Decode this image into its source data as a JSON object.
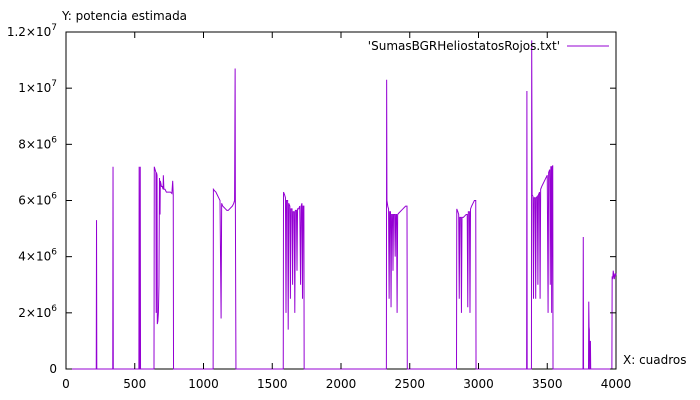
{
  "chart_data": {
    "type": "line",
    "ylabel": "Y: potencia estimada",
    "xlabel": "X: cuadros",
    "xlim": [
      0,
      4000
    ],
    "ylim": [
      0,
      12000000
    ],
    "x_ticks": [
      0,
      500,
      1000,
      1500,
      2000,
      2500,
      3000,
      3500,
      4000
    ],
    "x_tick_labels": [
      "0",
      "500",
      "1000",
      "1500",
      "2000",
      "2500",
      "3000",
      "3500",
      "4000"
    ],
    "y_ticks": [
      0,
      2000000,
      4000000,
      6000000,
      8000000,
      10000000,
      12000000
    ],
    "y_tick_labels": [
      {
        "mantissa": "0",
        "exp": ""
      },
      {
        "mantissa": "2×10",
        "exp": "6"
      },
      {
        "mantissa": "4×10",
        "exp": "6"
      },
      {
        "mantissa": "6×10",
        "exp": "6"
      },
      {
        "mantissa": "8×10",
        "exp": "6"
      },
      {
        "mantissa": "1×10",
        "exp": "7"
      },
      {
        "mantissa": "1.2×10",
        "exp": "7"
      }
    ],
    "grid": false,
    "legend_position": "top-right",
    "series": [
      {
        "name": "'SumasBGRHeliostatosRojos.txt'",
        "color": "#9400d3",
        "points": [
          [
            0,
            0
          ],
          [
            220,
            0
          ],
          [
            222,
            5300000
          ],
          [
            224,
            0
          ],
          [
            340,
            0
          ],
          [
            342,
            7200000
          ],
          [
            344,
            0
          ],
          [
            530,
            0
          ],
          [
            532,
            7200000
          ],
          [
            534,
            0
          ],
          [
            538,
            0
          ],
          [
            540,
            7200000
          ],
          [
            542,
            0
          ],
          [
            640,
            0
          ],
          [
            642,
            7200000
          ],
          [
            648,
            7100000
          ],
          [
            654,
            7000000
          ],
          [
            656,
            2000000
          ],
          [
            658,
            7000000
          ],
          [
            662,
            6900000
          ],
          [
            664,
            1600000
          ],
          [
            668,
            1700000
          ],
          [
            672,
            2000000
          ],
          [
            676,
            3000000
          ],
          [
            680,
            6800000
          ],
          [
            684,
            5500000
          ],
          [
            686,
            6700000
          ],
          [
            690,
            6600000
          ],
          [
            694,
            6500000
          ],
          [
            700,
            6500000
          ],
          [
            706,
            6400000
          ],
          [
            708,
            6900000
          ],
          [
            712,
            6400000
          ],
          [
            720,
            6400000
          ],
          [
            730,
            6300000
          ],
          [
            740,
            6300000
          ],
          [
            750,
            6300000
          ],
          [
            760,
            6300000
          ],
          [
            770,
            6250000
          ],
          [
            776,
            6700000
          ],
          [
            780,
            6200000
          ],
          [
            782,
            0
          ],
          [
            1070,
            0
          ],
          [
            1072,
            6400000
          ],
          [
            1080,
            6350000
          ],
          [
            1090,
            6300000
          ],
          [
            1100,
            6200000
          ],
          [
            1110,
            6100000
          ],
          [
            1120,
            6000000
          ],
          [
            1128,
            1800000
          ],
          [
            1132,
            5900000
          ],
          [
            1140,
            5800000
          ],
          [
            1150,
            5750000
          ],
          [
            1160,
            5700000
          ],
          [
            1170,
            5650000
          ],
          [
            1180,
            5650000
          ],
          [
            1190,
            5700000
          ],
          [
            1200,
            5750000
          ],
          [
            1210,
            5800000
          ],
          [
            1220,
            5900000
          ],
          [
            1226,
            6000000
          ],
          [
            1230,
            10700000
          ],
          [
            1232,
            5600000
          ],
          [
            1236,
            0
          ],
          [
            1580,
            0
          ],
          [
            1582,
            6300000
          ],
          [
            1590,
            6200000
          ],
          [
            1596,
            6100000
          ],
          [
            1600,
            2000000
          ],
          [
            1604,
            6000000
          ],
          [
            1612,
            6000000
          ],
          [
            1616,
            1400000
          ],
          [
            1620,
            5900000
          ],
          [
            1628,
            5800000
          ],
          [
            1632,
            2500000
          ],
          [
            1636,
            5700000
          ],
          [
            1644,
            5700000
          ],
          [
            1648,
            3000000
          ],
          [
            1652,
            5600000
          ],
          [
            1660,
            5600000
          ],
          [
            1664,
            2000000
          ],
          [
            1668,
            5650000
          ],
          [
            1676,
            5650000
          ],
          [
            1680,
            3500000
          ],
          [
            1684,
            5700000
          ],
          [
            1692,
            5700000
          ],
          [
            1696,
            5750000
          ],
          [
            1700,
            5800000
          ],
          [
            1706,
            3000000
          ],
          [
            1710,
            5800000
          ],
          [
            1716,
            5900000
          ],
          [
            1720,
            2500000
          ],
          [
            1724,
            5800000
          ],
          [
            1730,
            5800000
          ],
          [
            1732,
            0
          ],
          [
            2330,
            0
          ],
          [
            2332,
            10300000
          ],
          [
            2334,
            6000000
          ],
          [
            2340,
            5800000
          ],
          [
            2346,
            5700000
          ],
          [
            2350,
            2500000
          ],
          [
            2354,
            5600000
          ],
          [
            2360,
            5600000
          ],
          [
            2364,
            2200000
          ],
          [
            2368,
            5500000
          ],
          [
            2374,
            5500000
          ],
          [
            2378,
            3500000
          ],
          [
            2382,
            5500000
          ],
          [
            2390,
            5500000
          ],
          [
            2394,
            4000000
          ],
          [
            2398,
            5500000
          ],
          [
            2404,
            5500000
          ],
          [
            2408,
            2000000
          ],
          [
            2412,
            5500000
          ],
          [
            2420,
            5550000
          ],
          [
            2430,
            5600000
          ],
          [
            2440,
            5650000
          ],
          [
            2450,
            5700000
          ],
          [
            2460,
            5750000
          ],
          [
            2470,
            5800000
          ],
          [
            2480,
            5800000
          ],
          [
            2482,
            0
          ],
          [
            2840,
            0
          ],
          [
            2842,
            5700000
          ],
          [
            2850,
            5600000
          ],
          [
            2856,
            5500000
          ],
          [
            2860,
            2500000
          ],
          [
            2864,
            5400000
          ],
          [
            2872,
            5400000
          ],
          [
            2876,
            2000000
          ],
          [
            2880,
            5400000
          ],
          [
            2890,
            5400000
          ],
          [
            2900,
            5450000
          ],
          [
            2910,
            5500000
          ],
          [
            2918,
            5500000
          ],
          [
            2922,
            2200000
          ],
          [
            2926,
            5600000
          ],
          [
            2934,
            5600000
          ],
          [
            2938,
            2000000
          ],
          [
            2942,
            5700000
          ],
          [
            2950,
            5800000
          ],
          [
            2960,
            5900000
          ],
          [
            2970,
            6000000
          ],
          [
            2980,
            6000000
          ],
          [
            2982,
            0
          ],
          [
            3350,
            0
          ],
          [
            3352,
            9900000
          ],
          [
            3354,
            0
          ],
          [
            3385,
            0
          ],
          [
            3387,
            11700000
          ],
          [
            3390,
            6200000
          ],
          [
            3396,
            6150000
          ],
          [
            3400,
            2500000
          ],
          [
            3404,
            6100000
          ],
          [
            3412,
            6100000
          ],
          [
            3416,
            2500000
          ],
          [
            3420,
            6100000
          ],
          [
            3428,
            6150000
          ],
          [
            3432,
            3000000
          ],
          [
            3436,
            6200000
          ],
          [
            3444,
            6300000
          ],
          [
            3448,
            2500000
          ],
          [
            3452,
            6400000
          ],
          [
            3460,
            6500000
          ],
          [
            3470,
            6600000
          ],
          [
            3480,
            6700000
          ],
          [
            3490,
            6800000
          ],
          [
            3500,
            6900000
          ],
          [
            3506,
            2000000
          ],
          [
            3510,
            7000000
          ],
          [
            3518,
            7100000
          ],
          [
            3522,
            3000000
          ],
          [
            3526,
            7200000
          ],
          [
            3530,
            7200000
          ],
          [
            3532,
            2000000
          ],
          [
            3536,
            7200000
          ],
          [
            3540,
            7250000
          ],
          [
            3542,
            0
          ],
          [
            3760,
            0
          ],
          [
            3762,
            4700000
          ],
          [
            3764,
            0
          ],
          [
            3800,
            0
          ],
          [
            3802,
            2400000
          ],
          [
            3804,
            1500000
          ],
          [
            3806,
            1400000
          ],
          [
            3808,
            0
          ],
          [
            3812,
            0
          ],
          [
            3814,
            1000000
          ],
          [
            3816,
            0
          ],
          [
            3970,
            0
          ],
          [
            3972,
            3300000
          ],
          [
            3976,
            3200000
          ],
          [
            3980,
            3500000
          ],
          [
            3984,
            3300000
          ],
          [
            3988,
            3200000
          ],
          [
            3992,
            3400000
          ],
          [
            3996,
            3300000
          ],
          [
            4000,
            3400000
          ]
        ]
      }
    ]
  }
}
